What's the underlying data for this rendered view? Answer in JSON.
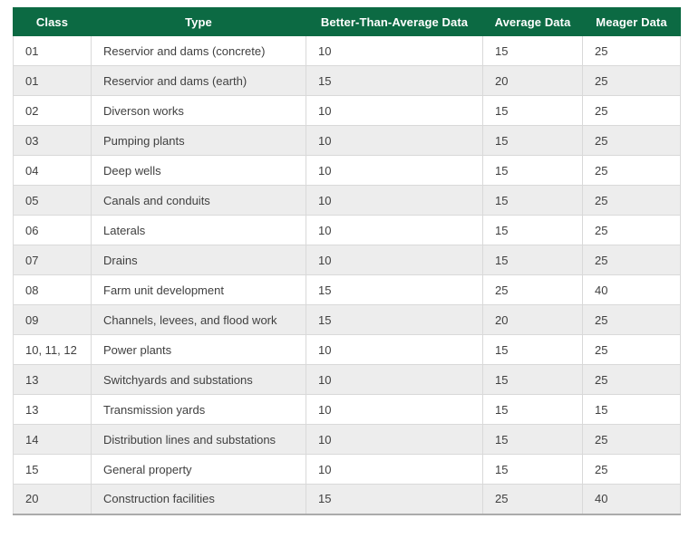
{
  "colors": {
    "header_bg": "#0C6A43",
    "header_text": "#FFFFFF",
    "row_bg": "#FFFFFF",
    "row_alt_bg": "#EDEDED",
    "cell_border": "#D9D9D9",
    "table_bottom_border": "#ABABAB",
    "text": "#404040"
  },
  "table": {
    "columns": [
      {
        "id": "class",
        "label": "Class"
      },
      {
        "id": "type",
        "label": "Type"
      },
      {
        "id": "better",
        "label": "Better-Than-Average Data"
      },
      {
        "id": "average",
        "label": "Average Data"
      },
      {
        "id": "meager",
        "label": "Meager Data"
      }
    ],
    "rows": [
      [
        "01",
        "Reservior and dams (concrete)",
        "10",
        "15",
        "25"
      ],
      [
        "01",
        "Reservior and dams (earth)",
        "15",
        "20",
        "25"
      ],
      [
        "02",
        "Diverson works",
        "10",
        "15",
        "25"
      ],
      [
        "03",
        "Pumping plants",
        "10",
        "15",
        "25"
      ],
      [
        "04",
        "Deep wells",
        "10",
        "15",
        "25"
      ],
      [
        "05",
        "Canals and conduits",
        "10",
        "15",
        "25"
      ],
      [
        "06",
        "Laterals",
        "10",
        "15",
        "25"
      ],
      [
        "07",
        "Drains",
        "10",
        "15",
        "25"
      ],
      [
        "08",
        "Farm unit development",
        "15",
        "25",
        "40"
      ],
      [
        "09",
        "Channels, levees, and flood work",
        "15",
        "20",
        "25"
      ],
      [
        "10, 11, 12",
        "Power plants",
        "10",
        "15",
        "25"
      ],
      [
        "13",
        "Switchyards and substations",
        "10",
        "15",
        "25"
      ],
      [
        "13",
        "Transmission yards",
        "10",
        "15",
        "15"
      ],
      [
        "14",
        "Distribution lines and substations",
        "10",
        "15",
        "25"
      ],
      [
        "15",
        "General property",
        "10",
        "15",
        "25"
      ],
      [
        "20",
        "Construction facilities",
        "15",
        "25",
        "40"
      ]
    ]
  }
}
